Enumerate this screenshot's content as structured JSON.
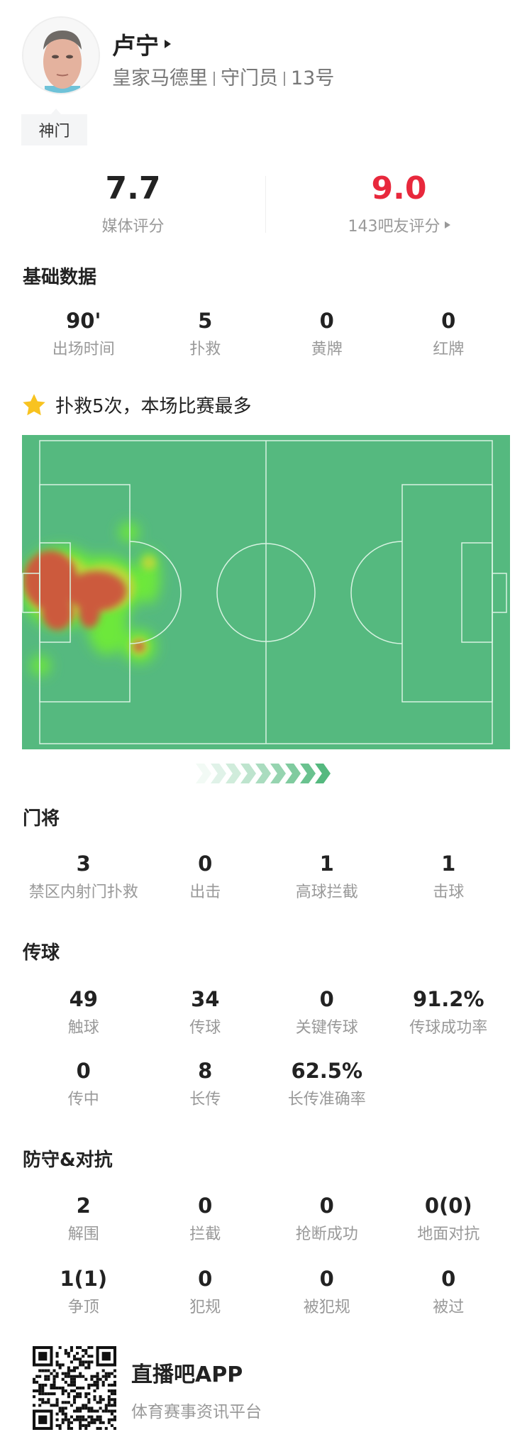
{
  "player": {
    "name": "卢宁",
    "team": "皇家马德里",
    "position": "守门员",
    "number": "13号",
    "tag": "神门"
  },
  "ratings": {
    "media": {
      "value": "7.7",
      "label": "媒体评分"
    },
    "fans": {
      "value": "9.0",
      "label": "143吧友评分",
      "color": "#e8283c"
    }
  },
  "basic": {
    "title": "基础数据",
    "items": [
      {
        "value": "90'",
        "label": "出场时间"
      },
      {
        "value": "5",
        "label": "扑救"
      },
      {
        "value": "0",
        "label": "黄牌"
      },
      {
        "value": "0",
        "label": "红牌"
      }
    ]
  },
  "highlight": {
    "icon": "star-icon",
    "text": "扑救5次，本场比赛最多"
  },
  "heatmap": {
    "pitch_color": "#55b97f",
    "direction_icon": "chevron-right-icon"
  },
  "goalkeeping": {
    "title": "门将",
    "items": [
      {
        "value": "3",
        "label": "禁区内射门扑救"
      },
      {
        "value": "0",
        "label": "出击"
      },
      {
        "value": "1",
        "label": "高球拦截"
      },
      {
        "value": "1",
        "label": "击球"
      }
    ]
  },
  "passing": {
    "title": "传球",
    "items": [
      {
        "value": "49",
        "label": "触球"
      },
      {
        "value": "34",
        "label": "传球"
      },
      {
        "value": "0",
        "label": "关键传球"
      },
      {
        "value": "91.2%",
        "label": "传球成功率"
      },
      {
        "value": "0",
        "label": "传中"
      },
      {
        "value": "8",
        "label": "长传"
      },
      {
        "value": "62.5%",
        "label": "长传准确率"
      }
    ]
  },
  "defense": {
    "title": "防守&对抗",
    "items": [
      {
        "value": "2",
        "label": "解围"
      },
      {
        "value": "0",
        "label": "拦截"
      },
      {
        "value": "0",
        "label": "抢断成功"
      },
      {
        "value": "0(0)",
        "label": "地面对抗"
      },
      {
        "value": "1(1)",
        "label": "争顶"
      },
      {
        "value": "0",
        "label": "犯规"
      },
      {
        "value": "0",
        "label": "被犯规"
      },
      {
        "value": "0",
        "label": "被过"
      }
    ]
  },
  "footer": {
    "app_name": "直播吧APP",
    "tagline": "体育赛事资讯平台"
  }
}
